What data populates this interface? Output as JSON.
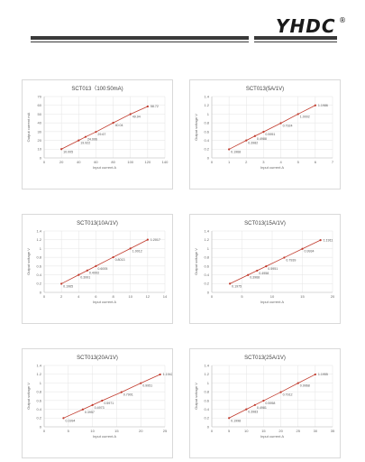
{
  "header": {
    "logo_text": "YHDC",
    "registered_mark": "®",
    "logo_color": "#1a1a1a",
    "rule_color": "#3a3a3a"
  },
  "chart_data": [
    {
      "type": "line",
      "title": "SCT013（100:50mA)",
      "xlabel": "Input  current    A",
      "ylabel": "Output  current    mA",
      "xlim": [
        0,
        140
      ],
      "ylim": [
        0,
        70
      ],
      "xticks": [
        0,
        20,
        40,
        60,
        80,
        100,
        120,
        140
      ],
      "yticks": [
        0,
        10,
        20,
        30,
        40,
        50,
        60,
        70
      ],
      "series_color": "#c0392b",
      "points": [
        {
          "x": 20,
          "y": 10.005,
          "label": "10.005"
        },
        {
          "x": 40,
          "y": 19.922,
          "label": "19.922"
        },
        {
          "x": 48,
          "y": 24.006,
          "label": "24.006"
        },
        {
          "x": 60,
          "y": 29.67,
          "label": "29.67"
        },
        {
          "x": 80,
          "y": 40.04,
          "label": "40.04"
        },
        {
          "x": 100,
          "y": 49.94,
          "label": "49.94"
        },
        {
          "x": 120,
          "y": 58.72,
          "label": "58.72"
        }
      ]
    },
    {
      "type": "line",
      "title": "SCT013(5A/1V)",
      "xlabel": "Input  current    A",
      "ylabel": "Output  voltage    V",
      "xlim": [
        0,
        7
      ],
      "ylim": [
        0,
        1.4
      ],
      "xticks": [
        0,
        1,
        2,
        3,
        4,
        5,
        6,
        7
      ],
      "yticks": [
        0,
        0.2,
        0.4,
        0.6,
        0.8,
        1,
        1.2,
        1.4
      ],
      "series_color": "#c0392b",
      "points": [
        {
          "x": 1,
          "y": 0.1968,
          "label": "0.1968"
        },
        {
          "x": 2,
          "y": 0.3982,
          "label": "0.3982"
        },
        {
          "x": 2.5,
          "y": 0.4988,
          "label": "0.4988"
        },
        {
          "x": 3,
          "y": 0.5951,
          "label": "0.5951"
        },
        {
          "x": 4,
          "y": 0.7924,
          "label": "0.7924"
        },
        {
          "x": 5,
          "y": 1.0002,
          "label": "1.0002"
        },
        {
          "x": 6,
          "y": 1.1986,
          "label": "1.1986"
        }
      ]
    },
    {
      "type": "line",
      "title": "SCT013(10A/1V)",
      "xlabel": "Input  current    A",
      "ylabel": "Output  voltage    V",
      "xlim": [
        0,
        14
      ],
      "ylim": [
        0,
        1.4
      ],
      "xticks": [
        0,
        2,
        4,
        6,
        8,
        10,
        12,
        14
      ],
      "yticks": [
        0,
        0.2,
        0.4,
        0.6,
        0.8,
        1,
        1.2,
        1.4
      ],
      "series_color": "#c0392b",
      "points": [
        {
          "x": 2,
          "y": 0.1965,
          "label": "0.1965"
        },
        {
          "x": 4,
          "y": 0.3991,
          "label": "0.3991"
        },
        {
          "x": 5,
          "y": 0.4993,
          "label": "0.4993"
        },
        {
          "x": 6,
          "y": 0.6005,
          "label": "0.6005"
        },
        {
          "x": 8,
          "y": 0.8013,
          "label": "0.8013"
        },
        {
          "x": 10,
          "y": 1.0012,
          "label": "1.0012"
        },
        {
          "x": 12,
          "y": 1.2017,
          "label": "1.2017"
        }
      ]
    },
    {
      "type": "line",
      "title": "SCT013(15A/1V)",
      "xlabel": "Input  current    A",
      "ylabel": "Output  voltage    V",
      "xlim": [
        0,
        20
      ],
      "ylim": [
        0,
        1.4
      ],
      "xticks": [
        0,
        5,
        10,
        15,
        20
      ],
      "yticks": [
        0,
        0.2,
        0.4,
        0.6,
        0.8,
        1,
        1.2,
        1.4
      ],
      "series_color": "#c0392b",
      "points": [
        {
          "x": 3,
          "y": 0.1975,
          "label": "0.1975"
        },
        {
          "x": 6,
          "y": 0.3968,
          "label": "0.3968"
        },
        {
          "x": 7.5,
          "y": 0.4958,
          "label": "0.4958"
        },
        {
          "x": 9,
          "y": 0.5951,
          "label": "0.5951"
        },
        {
          "x": 12,
          "y": 0.7939,
          "label": "0.7939"
        },
        {
          "x": 15,
          "y": 0.9934,
          "label": "0.9934"
        },
        {
          "x": 18,
          "y": 1.1911,
          "label": "1.1911"
        }
      ]
    },
    {
      "type": "line",
      "title": "SCT013(20A/1V)",
      "xlabel": "Input  current    A",
      "ylabel": "Output  voltage    V",
      "xlim": [
        0,
        25
      ],
      "ylim": [
        0,
        1.4
      ],
      "xticks": [
        0,
        5,
        10,
        15,
        20,
        25
      ],
      "yticks": [
        0,
        0.2,
        0.4,
        0.6,
        0.8,
        1,
        1.2,
        1.4
      ],
      "series_color": "#c0392b",
      "points": [
        {
          "x": 4,
          "y": 0.1994,
          "label": "0.1994"
        },
        {
          "x": 8,
          "y": 0.3957,
          "label": "0.3957"
        },
        {
          "x": 10,
          "y": 0.4973,
          "label": "0.4973"
        },
        {
          "x": 12,
          "y": 0.5971,
          "label": "0.5971"
        },
        {
          "x": 16,
          "y": 0.7901,
          "label": "0.7901"
        },
        {
          "x": 20,
          "y": 0.9951,
          "label": "0.9951"
        },
        {
          "x": 24,
          "y": 1.1942,
          "label": "1.1942"
        }
      ]
    },
    {
      "type": "line",
      "title": "SCT013(25A/1V)",
      "xlabel": "Input  current    A",
      "ylabel": "Output  voltage    V",
      "xlim": [
        0,
        35
      ],
      "ylim": [
        0,
        1.4
      ],
      "xticks": [
        0,
        5,
        10,
        15,
        20,
        25,
        30,
        35
      ],
      "yticks": [
        0,
        0.2,
        0.4,
        0.6,
        0.8,
        1,
        1.2,
        1.4
      ],
      "series_color": "#c0392b",
      "points": [
        {
          "x": 5,
          "y": 0.1998,
          "label": "0.1998"
        },
        {
          "x": 10,
          "y": 0.3983,
          "label": "0.3983"
        },
        {
          "x": 12.5,
          "y": 0.4981,
          "label": "0.4981"
        },
        {
          "x": 15,
          "y": 0.5958,
          "label": "0.5958"
        },
        {
          "x": 20,
          "y": 0.7912,
          "label": "0.7912"
        },
        {
          "x": 25,
          "y": 0.9968,
          "label": "0.9968"
        },
        {
          "x": 30,
          "y": 1.1955,
          "label": "1.1955"
        }
      ]
    }
  ]
}
